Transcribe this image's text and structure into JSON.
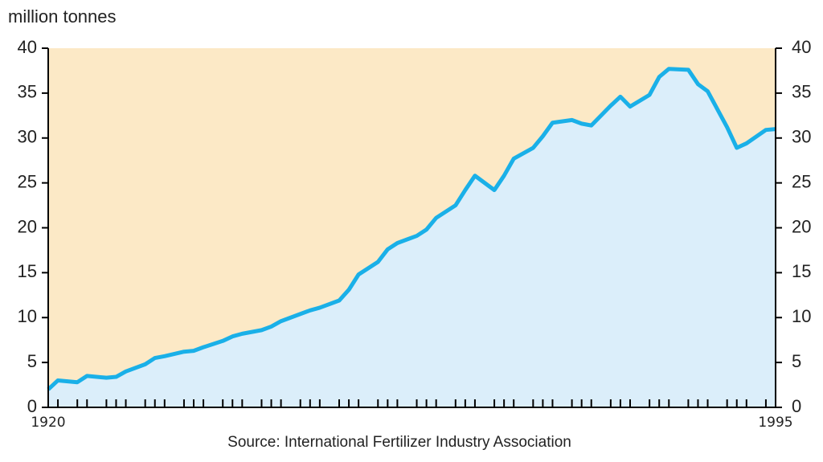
{
  "chart_data": {
    "type": "area",
    "y_axis_label": "million tonnes",
    "source": "Source: International Fertilizer Industry Association",
    "x": [
      1920,
      1921,
      1923,
      1924,
      1926,
      1927,
      1928,
      1930,
      1931,
      1932,
      1934,
      1935,
      1936,
      1938,
      1939,
      1940,
      1942,
      1943,
      1944,
      1946,
      1947,
      1948,
      1950,
      1951,
      1952,
      1954,
      1955,
      1956,
      1958,
      1959,
      1960,
      1962,
      1963,
      1964,
      1966,
      1967,
      1968,
      1970,
      1971,
      1972,
      1974,
      1975,
      1976,
      1978,
      1979,
      1980,
      1982,
      1983,
      1984,
      1986,
      1987,
      1988,
      1990,
      1991,
      1992,
      1994,
      1995
    ],
    "values": [
      2.0,
      3.0,
      2.8,
      3.5,
      3.3,
      3.4,
      4.0,
      4.8,
      5.5,
      5.7,
      6.2,
      6.3,
      6.7,
      7.4,
      7.9,
      8.2,
      8.6,
      9.0,
      9.6,
      10.4,
      10.8,
      11.1,
      11.9,
      13.1,
      14.8,
      16.2,
      17.6,
      18.3,
      19.1,
      19.8,
      21.1,
      22.5,
      24.2,
      25.8,
      24.2,
      25.8,
      27.7,
      28.9,
      30.2,
      31.7,
      32.0,
      31.6,
      31.4,
      33.6,
      34.6,
      33.5,
      34.8,
      36.8,
      37.7,
      37.6,
      36.0,
      35.2,
      31.2,
      28.9,
      29.4,
      30.9,
      31.0
    ],
    "line_color": "#1ab0e8",
    "area_color": "#dbeefa",
    "background_color": "#fce9c6",
    "xlim": [
      1920,
      1995
    ],
    "xticks": [
      1920,
      1995
    ],
    "ylim": [
      0,
      40
    ],
    "yticks": [
      0,
      5,
      10,
      15,
      20,
      25,
      30,
      35,
      40
    ],
    "secondary_y_axis": true
  }
}
